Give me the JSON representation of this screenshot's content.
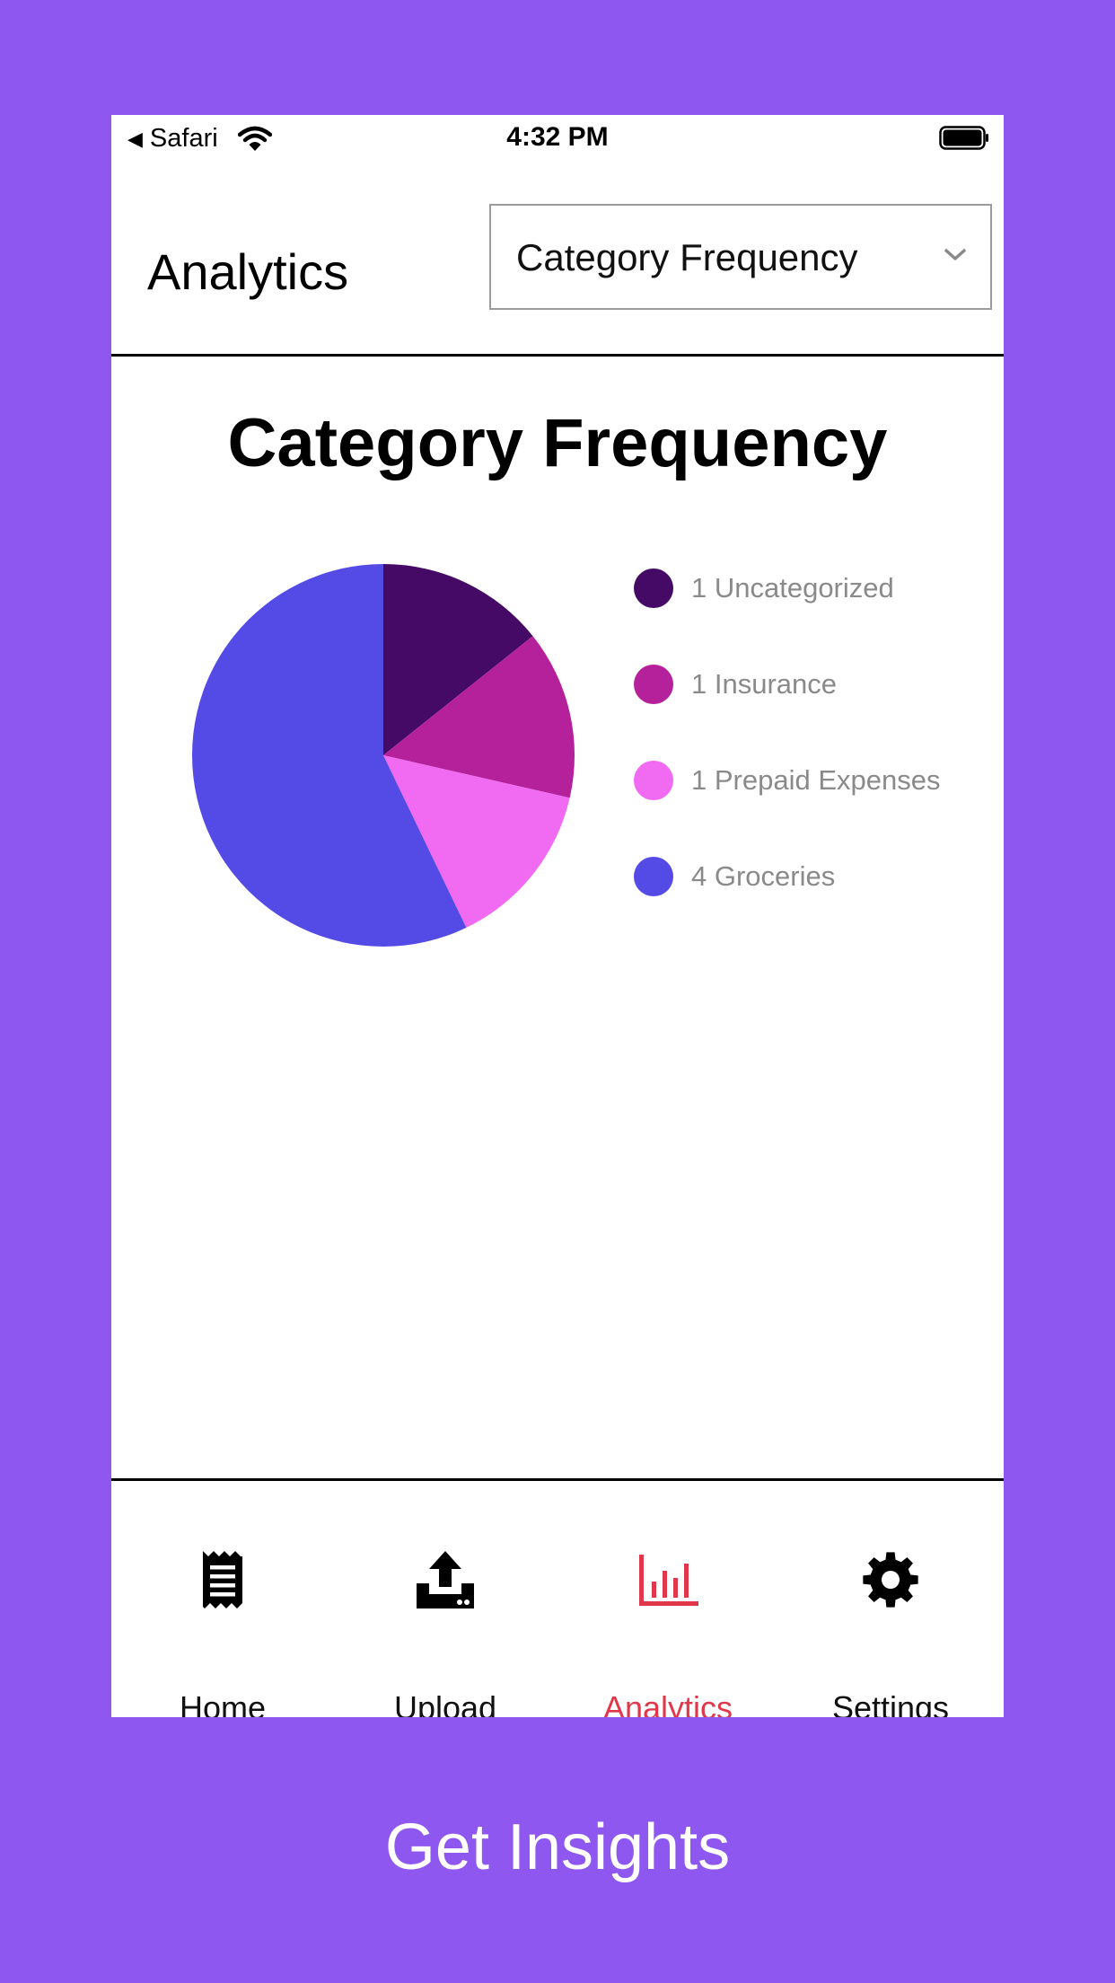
{
  "status_bar": {
    "back_app": "Safari",
    "time": "4:32 PM"
  },
  "header": {
    "title": "Analytics",
    "select": {
      "selected": "Category Frequency"
    }
  },
  "colors": {
    "background": "#8e58f0",
    "active_tab": "#e0374a"
  },
  "chart_data": {
    "type": "pie",
    "title": "Category Frequency",
    "legend_position": "right",
    "slices": [
      {
        "label": "1 Uncategorized",
        "value": 1,
        "color": "#450a66"
      },
      {
        "label": "1 Insurance",
        "value": 1,
        "color": "#b5219b"
      },
      {
        "label": "1 Prepaid Expenses",
        "value": 1,
        "color": "#f06af2"
      },
      {
        "label": "4 Groceries",
        "value": 4,
        "color": "#544ae6"
      }
    ]
  },
  "tabs": [
    {
      "label": "Home",
      "icon": "receipt-icon",
      "active": false
    },
    {
      "label": "Upload",
      "icon": "upload-icon",
      "active": false
    },
    {
      "label": "Analytics",
      "icon": "bar-chart-icon",
      "active": true
    },
    {
      "label": "Settings",
      "icon": "gear-icon",
      "active": false
    }
  ],
  "caption": "Get Insights"
}
